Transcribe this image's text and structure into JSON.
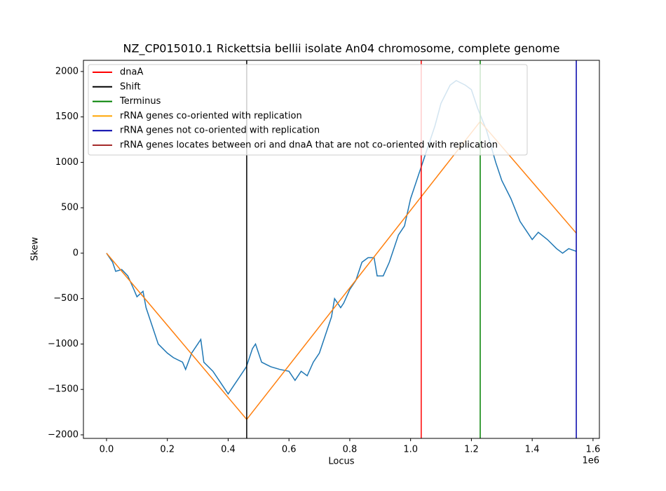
{
  "chart_data": {
    "type": "line",
    "title": "NZ_CP015010.1 Rickettsia bellii isolate An04 chromosome, complete genome",
    "x_label": "Locus",
    "y_label": "Skew",
    "x_offset_label": "1e6",
    "xlim": [
      -76000,
      1621000
    ],
    "ylim": [
      -2039,
      2123
    ],
    "xticks": [
      {
        "value": 0,
        "label": "0.0"
      },
      {
        "value": 200000,
        "label": "0.2"
      },
      {
        "value": 400000,
        "label": "0.4"
      },
      {
        "value": 600000,
        "label": "0.6"
      },
      {
        "value": 800000,
        "label": "0.8"
      },
      {
        "value": 1000000,
        "label": "1.0"
      },
      {
        "value": 1200000,
        "label": "1.2"
      },
      {
        "value": 1400000,
        "label": "1.4"
      },
      {
        "value": 1600000,
        "label": "1.6"
      }
    ],
    "yticks": [
      {
        "value": -2000,
        "label": "−2000"
      },
      {
        "value": -1500,
        "label": "−1500"
      },
      {
        "value": -1000,
        "label": "−1000"
      },
      {
        "value": -500,
        "label": "−500"
      },
      0,
      500,
      1000,
      1500,
      2000
    ],
    "curves": [
      {
        "color": "#1f77b4",
        "x": [
          0,
          20000,
          30000,
          50000,
          70000,
          90000,
          100000,
          120000,
          130000,
          150000,
          170000,
          200000,
          220000,
          250000,
          260000,
          280000,
          300000,
          310000,
          320000,
          350000,
          380000,
          400000,
          420000,
          440000,
          460000,
          480000,
          490000,
          510000,
          540000,
          570000,
          600000,
          620000,
          640000,
          660000,
          680000,
          700000,
          720000,
          740000,
          750000,
          770000,
          780000,
          800000,
          820000,
          840000,
          860000,
          880000,
          890000,
          910000,
          930000,
          960000,
          980000,
          1000000,
          1030000,
          1050000,
          1080000,
          1100000,
          1130000,
          1150000,
          1180000,
          1200000,
          1220000,
          1250000,
          1280000,
          1300000,
          1330000,
          1360000,
          1380000,
          1400000,
          1420000,
          1450000,
          1480000,
          1500000,
          1520000,
          1545000
        ],
        "values": [
          0,
          -100,
          -200,
          -180,
          -250,
          -400,
          -480,
          -420,
          -600,
          -800,
          -1000,
          -1100,
          -1150,
          -1200,
          -1280,
          -1100,
          -1000,
          -950,
          -1200,
          -1300,
          -1450,
          -1550,
          -1450,
          -1350,
          -1250,
          -1050,
          -1000,
          -1200,
          -1250,
          -1280,
          -1300,
          -1400,
          -1300,
          -1350,
          -1200,
          -1100,
          -900,
          -700,
          -500,
          -600,
          -550,
          -400,
          -300,
          -100,
          -50,
          -50,
          -250,
          -250,
          -100,
          200,
          300,
          600,
          900,
          1100,
          1400,
          1650,
          1850,
          1900,
          1850,
          1800,
          1600,
          1350,
          1000,
          800,
          600,
          350,
          250,
          150,
          230,
          150,
          50,
          0,
          50,
          20
        ]
      },
      {
        "color": "#ff7f0e",
        "x": [
          0,
          461000,
          1229000,
          1545000
        ],
        "values": [
          0,
          -1830,
          1450,
          220
        ]
      }
    ],
    "vlines": [
      {
        "x": 1035000,
        "color": "red"
      },
      {
        "x": 461000,
        "color": "black"
      },
      {
        "x": 1229000,
        "color": "green"
      },
      {
        "x": 1545000,
        "color": "#0000aa"
      }
    ],
    "legend": [
      {
        "name": "dnaA",
        "color": "red"
      },
      {
        "name": "Shift",
        "color": "black"
      },
      {
        "name": "Terminus",
        "color": "green"
      },
      {
        "name": "rRNA genes co-oriented with replication",
        "color": "orange"
      },
      {
        "name": "rRNA genes not co-oriented with replication",
        "color": "#0000aa"
      },
      {
        "name": "rRNA genes locates between ori and dnaA that are not co-oriented with replication",
        "color": "brown"
      }
    ]
  }
}
